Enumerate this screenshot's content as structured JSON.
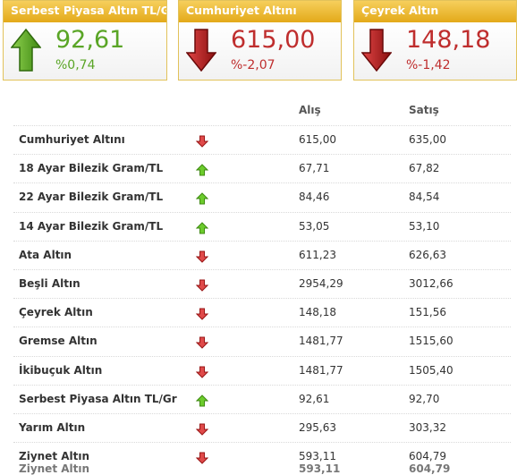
{
  "cards": [
    {
      "title": "Serbest Piyasa Altın TL/Gr",
      "value": "92,61",
      "change": "%0,74",
      "direction": "up",
      "arrow_icon": "up-arrow-icon"
    },
    {
      "title": "Cumhuriyet Altını",
      "value": "615,00",
      "change": "%-2,07",
      "direction": "down",
      "arrow_icon": "down-arrow-icon"
    },
    {
      "title": "Çeyrek Altın",
      "value": "148,18",
      "change": "%-1,42",
      "direction": "down",
      "arrow_icon": "down-arrow-icon"
    }
  ],
  "table": {
    "headers": {
      "buy": "Alış",
      "sell": "Satış"
    },
    "rows": [
      {
        "name": "Cumhuriyet Altını",
        "direction": "down",
        "buy": "615,00",
        "sell": "635,00"
      },
      {
        "name": "18 Ayar Bilezik Gram/TL",
        "direction": "up",
        "buy": "67,71",
        "sell": "67,82"
      },
      {
        "name": "22 Ayar Bilezik Gram/TL",
        "direction": "up",
        "buy": "84,46",
        "sell": "84,54"
      },
      {
        "name": "14 Ayar Bilezik Gram/TL",
        "direction": "up",
        "buy": "53,05",
        "sell": "53,10"
      },
      {
        "name": "Ata Altın",
        "direction": "down",
        "buy": "611,23",
        "sell": "626,63"
      },
      {
        "name": "Beşli Altın",
        "direction": "down",
        "buy": "2954,29",
        "sell": "3012,66"
      },
      {
        "name": "Çeyrek Altın",
        "direction": "down",
        "buy": "148,18",
        "sell": "151,56"
      },
      {
        "name": "Gremse Altın",
        "direction": "down",
        "buy": "1481,77",
        "sell": "1515,60"
      },
      {
        "name": "İkibuçuk Altın",
        "direction": "down",
        "buy": "1481,77",
        "sell": "1505,40"
      },
      {
        "name": "Serbest Piyasa Altın TL/Gr",
        "direction": "up",
        "buy": "92,61",
        "sell": "92,70"
      },
      {
        "name": "Yarım Altın",
        "direction": "down",
        "buy": "295,63",
        "sell": "303,32"
      },
      {
        "name": "Ziynet Altın",
        "direction": "down",
        "buy": "593,11",
        "sell": "604,79"
      }
    ]
  },
  "colors": {
    "up": "#5aa526",
    "down": "#bf2e2e",
    "header_gold": "#e3a919"
  }
}
